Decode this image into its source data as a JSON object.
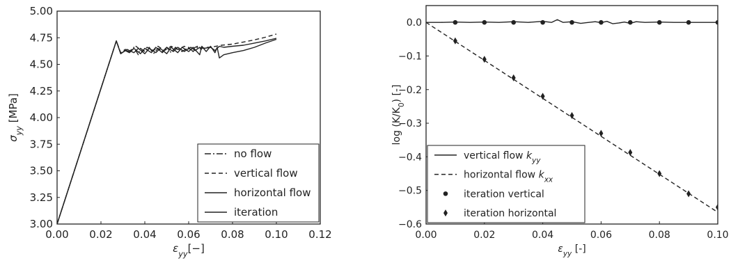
{
  "chart_data": [
    {
      "type": "line",
      "xlim": [
        0.0,
        0.12
      ],
      "ylim": [
        3.0,
        5.0
      ],
      "x_ticks": [
        "0.00",
        "0.02",
        "0.04",
        "0.06",
        "0.08",
        "0.10",
        "0.12"
      ],
      "y_ticks": [
        "3.00",
        "3.25",
        "3.50",
        "3.75",
        "4.00",
        "4.25",
        "4.50",
        "4.75",
        "5.00"
      ],
      "xlabel": {
        "main": "ε",
        "sub": "yy",
        "post": "[−]"
      },
      "ylabel": {
        "main": "σ",
        "sub": "yy",
        "post": " [MPa]"
      },
      "legend_position": "lower-right",
      "series": [
        {
          "name": "no flow",
          "style": "dashdot",
          "color": "#222222",
          "points": [
            [
              0,
              3.0
            ],
            [
              0.027,
              4.72
            ],
            [
              0.029,
              4.6
            ],
            [
              0.031,
              4.63
            ],
            [
              0.033,
              4.62
            ],
            [
              0.035,
              4.66
            ],
            [
              0.037,
              4.59
            ],
            [
              0.038,
              4.65
            ],
            [
              0.04,
              4.62
            ],
            [
              0.042,
              4.66
            ],
            [
              0.044,
              4.6
            ],
            [
              0.046,
              4.65
            ],
            [
              0.048,
              4.62
            ],
            [
              0.05,
              4.66
            ],
            [
              0.052,
              4.61
            ],
            [
              0.054,
              4.66
            ],
            [
              0.057,
              4.62
            ],
            [
              0.06,
              4.66
            ],
            [
              0.062,
              4.62
            ],
            [
              0.064,
              4.66
            ],
            [
              0.066,
              4.64
            ]
          ]
        },
        {
          "name": "vertical flow",
          "style": "dashed",
          "color": "#222222",
          "points": [
            [
              0,
              3.0
            ],
            [
              0.027,
              4.72
            ],
            [
              0.029,
              4.61
            ],
            [
              0.031,
              4.64
            ],
            [
              0.034,
              4.63
            ],
            [
              0.036,
              4.67
            ],
            [
              0.039,
              4.62
            ],
            [
              0.041,
              4.66
            ],
            [
              0.044,
              4.63
            ],
            [
              0.046,
              4.67
            ],
            [
              0.049,
              4.63
            ],
            [
              0.052,
              4.67
            ],
            [
              0.055,
              4.64
            ],
            [
              0.058,
              4.67
            ],
            [
              0.061,
              4.64
            ],
            [
              0.064,
              4.67
            ],
            [
              0.066,
              4.65
            ],
            [
              0.068,
              4.66
            ],
            [
              0.07,
              4.66
            ],
            [
              0.075,
              4.68
            ],
            [
              0.08,
              4.69
            ],
            [
              0.085,
              4.71
            ],
            [
              0.09,
              4.73
            ],
            [
              0.095,
              4.755
            ],
            [
              0.1,
              4.785
            ]
          ]
        },
        {
          "name": "horizontal flow",
          "style": "solid",
          "color": "#222222",
          "points": [
            [
              0,
              3.0
            ],
            [
              0.027,
              4.72
            ],
            [
              0.029,
              4.6
            ],
            [
              0.032,
              4.64
            ],
            [
              0.035,
              4.61
            ],
            [
              0.037,
              4.65
            ],
            [
              0.04,
              4.6
            ],
            [
              0.042,
              4.65
            ],
            [
              0.045,
              4.61
            ],
            [
              0.047,
              4.65
            ],
            [
              0.05,
              4.6
            ],
            [
              0.052,
              4.66
            ],
            [
              0.055,
              4.61
            ],
            [
              0.057,
              4.66
            ],
            [
              0.06,
              4.62
            ],
            [
              0.062,
              4.66
            ],
            [
              0.065,
              4.59
            ],
            [
              0.066,
              4.67
            ],
            [
              0.068,
              4.62
            ],
            [
              0.07,
              4.67
            ],
            [
              0.072,
              4.61
            ],
            [
              0.073,
              4.66
            ],
            [
              0.074,
              4.56
            ],
            [
              0.076,
              4.59
            ],
            [
              0.08,
              4.61
            ],
            [
              0.085,
              4.63
            ],
            [
              0.09,
              4.66
            ],
            [
              0.095,
              4.7
            ],
            [
              0.1,
              4.735
            ]
          ]
        },
        {
          "name": "iteration",
          "style": "solid",
          "color": "#222222",
          "points": [
            [
              0,
              3.0
            ],
            [
              0.027,
              4.72
            ],
            [
              0.029,
              4.6
            ],
            [
              0.031,
              4.63
            ],
            [
              0.033,
              4.61
            ],
            [
              0.035,
              4.65
            ],
            [
              0.038,
              4.6
            ],
            [
              0.04,
              4.65
            ],
            [
              0.043,
              4.61
            ],
            [
              0.045,
              4.66
            ],
            [
              0.048,
              4.61
            ],
            [
              0.05,
              4.66
            ],
            [
              0.053,
              4.62
            ],
            [
              0.055,
              4.66
            ],
            [
              0.058,
              4.62
            ],
            [
              0.061,
              4.66
            ],
            [
              0.063,
              4.63
            ],
            [
              0.065,
              4.66
            ],
            [
              0.067,
              4.65
            ],
            [
              0.07,
              4.66
            ],
            [
              0.072,
              4.63
            ],
            [
              0.074,
              4.67
            ],
            [
              0.076,
              4.66
            ],
            [
              0.08,
              4.67
            ],
            [
              0.085,
              4.68
            ],
            [
              0.09,
              4.7
            ],
            [
              0.095,
              4.72
            ],
            [
              0.1,
              4.745
            ]
          ]
        }
      ]
    },
    {
      "type": "line",
      "xlim": [
        0.0,
        0.1
      ],
      "ylim": [
        -0.6,
        0.05
      ],
      "x_ticks": [
        "0.00",
        "0.02",
        "0.04",
        "0.06",
        "0.08",
        "0.10"
      ],
      "y_ticks": [
        "0.0",
        "−0.1",
        "−0.2",
        "−0.3",
        "−0.4",
        "−0.5",
        "−0.6"
      ],
      "xlabel": {
        "main": "ε",
        "sub": "yy",
        "post": " [-]"
      },
      "ylabel": {
        "pre": "log (K/K",
        "sub": "0",
        "post": ") [-]"
      },
      "legend_position": "lower-left",
      "series": [
        {
          "name": "vertical flow",
          "name_sym": "k",
          "name_sub": "yy",
          "style": "solid",
          "color": "#222222",
          "points": [
            [
              0,
              0.0
            ],
            [
              0.005,
              0.0
            ],
            [
              0.01,
              0.001
            ],
            [
              0.015,
              0.0
            ],
            [
              0.02,
              0.001
            ],
            [
              0.025,
              0.0
            ],
            [
              0.03,
              0.002
            ],
            [
              0.035,
              0.0
            ],
            [
              0.04,
              0.003
            ],
            [
              0.043,
              0.0
            ],
            [
              0.045,
              0.008
            ],
            [
              0.047,
              0.0
            ],
            [
              0.05,
              0.002
            ],
            [
              0.053,
              -0.003
            ],
            [
              0.055,
              -0.001
            ],
            [
              0.058,
              0.002
            ],
            [
              0.06,
              -0.001
            ],
            [
              0.062,
              0.003
            ],
            [
              0.064,
              -0.004
            ],
            [
              0.066,
              -0.002
            ],
            [
              0.068,
              0.001
            ],
            [
              0.07,
              -0.003
            ],
            [
              0.072,
              0.002
            ],
            [
              0.075,
              0.0
            ],
            [
              0.08,
              0.001
            ],
            [
              0.085,
              0.0
            ],
            [
              0.09,
              0.0
            ],
            [
              0.1,
              0.0
            ]
          ]
        },
        {
          "name": "horizontal flow",
          "name_sym": "k",
          "name_sub": "xx",
          "style": "dashed",
          "color": "#222222",
          "points": [
            [
              0,
              0.0
            ],
            [
              0.1,
              -0.565
            ]
          ]
        },
        {
          "name": "iteration vertical",
          "style": "marker-circle",
          "color": "#222222",
          "points": [
            [
              0.01,
              0.0
            ],
            [
              0.02,
              0.0
            ],
            [
              0.03,
              0.0
            ],
            [
              0.04,
              0.0
            ],
            [
              0.05,
              0.0
            ],
            [
              0.06,
              0.0
            ],
            [
              0.07,
              0.0
            ],
            [
              0.08,
              0.0
            ],
            [
              0.09,
              0.0
            ],
            [
              0.1,
              0.0
            ]
          ]
        },
        {
          "name": "iteration horizontal",
          "style": "marker-diamond",
          "color": "#222222",
          "points": [
            [
              0.01,
              -0.055
            ],
            [
              0.02,
              -0.11
            ],
            [
              0.03,
              -0.165
            ],
            [
              0.04,
              -0.22
            ],
            [
              0.05,
              -0.277
            ],
            [
              0.06,
              -0.33
            ],
            [
              0.07,
              -0.387
            ],
            [
              0.08,
              -0.45
            ],
            [
              0.09,
              -0.51
            ],
            [
              0.1,
              -0.55
            ]
          ]
        }
      ]
    }
  ]
}
